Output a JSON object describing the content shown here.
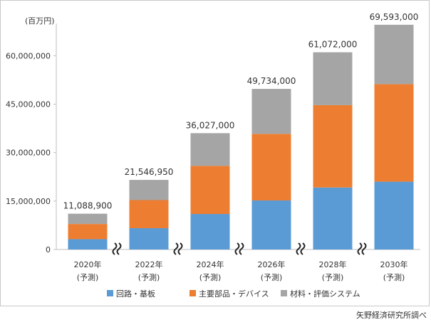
{
  "chart_data": {
    "type": "bar",
    "stacked": true,
    "unit_label": "(百万円)",
    "categories": [
      [
        "2020年",
        "(予測)"
      ],
      [
        "2022年",
        "(予測)"
      ],
      [
        "2024年",
        "(予測)"
      ],
      [
        "2026年",
        "(予測)"
      ],
      [
        "2028年",
        "(予測)"
      ],
      [
        "2030年",
        "(予測)"
      ]
    ],
    "series": [
      {
        "name": "回路・基板",
        "color": "#5b9bd5",
        "values": [
          3200000,
          6600000,
          11000000,
          15200000,
          19200000,
          21000000
        ]
      },
      {
        "name": "主要部品・デバイス",
        "color": "#ed7d31",
        "values": [
          4700000,
          8700000,
          14900000,
          20600000,
          25500000,
          30200000
        ]
      },
      {
        "name": "材料・評価システム",
        "color": "#a5a5a5",
        "values": [
          3188900,
          6246950,
          10127000,
          13934000,
          16372000,
          18393000
        ]
      }
    ],
    "totals": [
      "11,088,900",
      "21,546,950",
      "36,027,000",
      "49,734,000",
      "61,072,000",
      "69,593,000"
    ],
    "ylim": [
      0,
      70000000
    ],
    "yticks": [
      0,
      15000000,
      30000000,
      45000000,
      60000000
    ],
    "ytick_labels": [
      "0",
      "15,000,000",
      "30,000,000",
      "45,000,000",
      "60,000,000"
    ],
    "axis_break_marks": true,
    "grid": false,
    "legend_position": "bottom"
  },
  "source": "矢野経済研究所調べ"
}
